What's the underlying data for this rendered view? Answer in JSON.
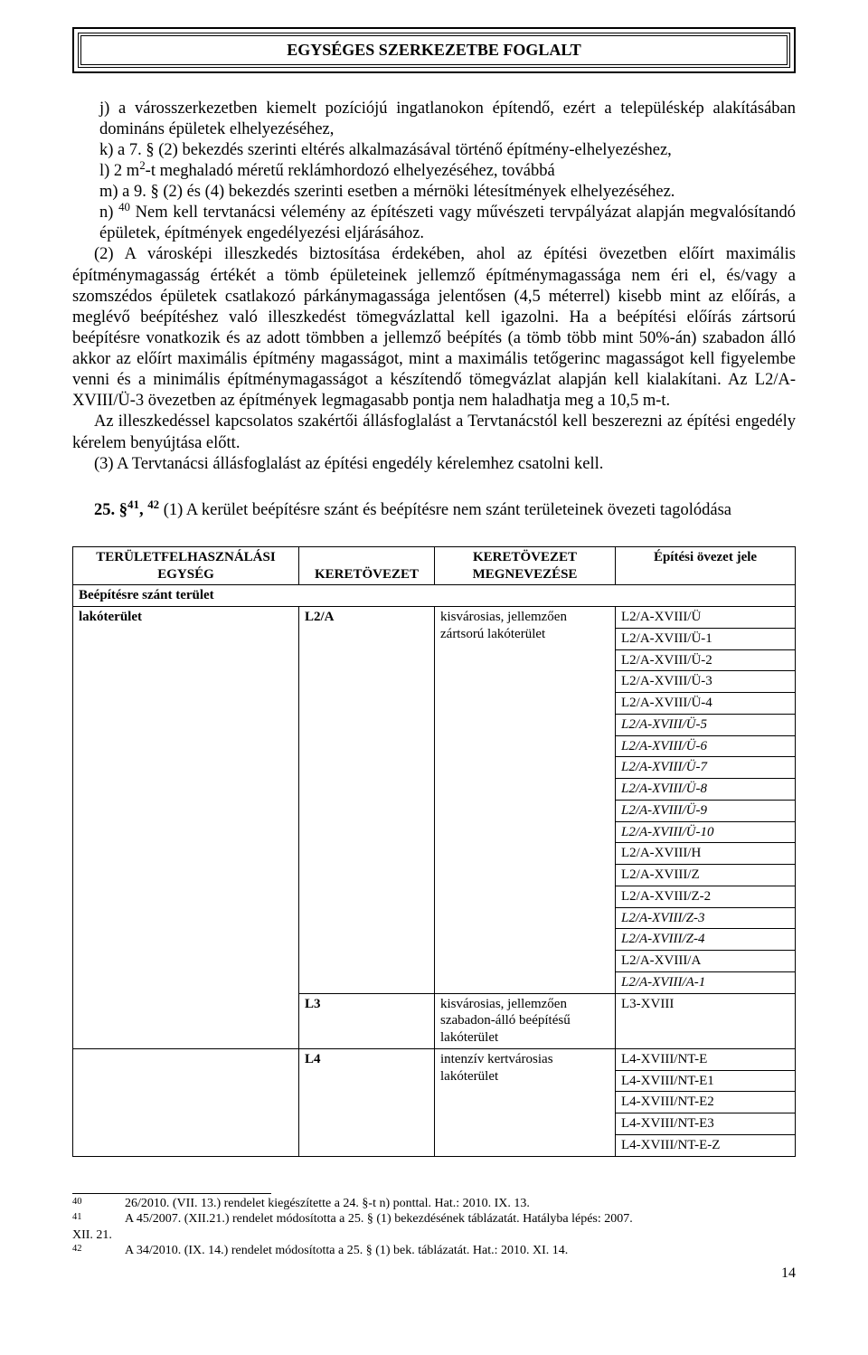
{
  "header": {
    "title": "EGYSÉGES SZERKEZETBE FOGLALT"
  },
  "para": {
    "j": "j) a városszerkezetben kiemelt pozíciójú ingatlanokon építendő, ezért a településkép alakításában domináns épületek elhelyezéséhez,",
    "k": "k) a 7. § (2) bekezdés szerinti eltérés alkalmazásával történő építmény-elhelyezéshez,",
    "l_pre": "l) 2 m",
    "l_exp": "2",
    "l_post": "-t meghaladó méretű reklámhordozó elhelyezéséhez, továbbá",
    "m": "m) a 9. § (2) és (4) bekezdés szerinti esetben a mérnöki létesítmények elhelyezéséhez.",
    "n_pre": "n) ",
    "n_sup": "40",
    "n_post": " Nem kell tervtanácsi vélemény az építészeti vagy művészeti tervpályázat alapján megvalósítandó épületek, építmények engedélyezési eljárásához.",
    "p2": "(2) A városképi illeszkedés biztosítása érdekében, ahol az építési övezetben előírt maximális építménymagasság értékét a tömb épületeinek jellemző építménymagassága nem éri el, és/vagy a szomszédos épületek csatlakozó párkánymagassága jelentősen (4,5 méterrel) kisebb mint az előírás, a meglévő beépítéshez való illeszkedést tömegvázlattal kell igazolni. Ha a beépítési előírás zártsorú beépítésre vonatkozik és az adott tömbben a jellemző beépítés (a tömb több mint 50%-án) szabadon álló akkor az előírt maximális építmény magasságot, mint a maximális tetőgerinc magasságot kell figyelembe venni és a minimális építménymagasságot a készítendő tömegvázlat alapján kell kialakítani. Az L2/A-XVIII/Ü-3 övezetben az építmények legmagasabb pontja nem haladhatja meg a 10,5 m-t.",
    "p2b": "Az illeszkedéssel kapcsolatos szakértői állásfoglalást a Tervtanácstól kell beszerezni az építési engedély kérelem benyújtása előtt.",
    "p3": "(3) A Tervtanácsi állásfoglalást az építési engedély kérelemhez csatolni kell.",
    "s25_pre": "25. §",
    "s25_sup1": "41",
    "s25_mid": ", ",
    "s25_sup2": "42",
    "s25_post": " (1) A kerület beépítésre szánt és beépítésre nem szánt területeinek övezeti tagolódása"
  },
  "table": {
    "headers": {
      "c1a": "TERÜLETFELHASZNÁLÁSI",
      "c1b": "EGYSÉG",
      "c2": "KERETÖVEZET",
      "c3a": "KERETÖVEZET",
      "c3b": "MEGNEVEZÉSE",
      "c4": "Építési övezet jele"
    },
    "row_span": "Beépítésre szánt terület",
    "r1": {
      "c1": "lakóterület",
      "c2": "L2/A",
      "c3": "kisvárosias, jellemzően zártsorú lakóterület"
    },
    "zones1": [
      {
        "t": "L2/A-XVIII/Ü",
        "i": false
      },
      {
        "t": "L2/A-XVIII/Ü-1",
        "i": false
      },
      {
        "t": "L2/A-XVIII/Ü-2",
        "i": false
      },
      {
        "t": "L2/A-XVIII/Ü-3",
        "i": false
      },
      {
        "t": "L2/A-XVIII/Ü-4",
        "i": false
      },
      {
        "t": "L2/A-XVIII/Ü-5",
        "i": true
      },
      {
        "t": "L2/A-XVIII/Ü-6",
        "i": true
      },
      {
        "t": "L2/A-XVIII/Ü-7",
        "i": true
      },
      {
        "t": "L2/A-XVIII/Ü-8",
        "i": true
      },
      {
        "t": "L2/A-XVIII/Ü-9",
        "i": true
      },
      {
        "t": "L2/A-XVIII/Ü-10",
        "i": true
      },
      {
        "t": "L2/A-XVIII/H",
        "i": false
      },
      {
        "t": "L2/A-XVIII/Z",
        "i": false
      },
      {
        "t": "L2/A-XVIII/Z-2",
        "i": false
      },
      {
        "t": "L2/A-XVIII/Z-3",
        "i": true
      },
      {
        "t": "L2/A-XVIII/Z-4",
        "i": true
      },
      {
        "t": "L2/A-XVIII/A",
        "i": false
      },
      {
        "t": "L2/A-XVIII/A-1",
        "i": true
      }
    ],
    "r2": {
      "c2": "L3",
      "c3": "kisvárosias, jellemzően szabadon-álló beépítésű lakóterület",
      "c4": "L3-XVIII"
    },
    "r3": {
      "c2": "L4",
      "c3": "intenzív kertvárosias lakóterület"
    },
    "zones3": [
      {
        "t": "L4-XVIII/NT-E",
        "i": false
      },
      {
        "t": "L4-XVIII/NT-E1",
        "i": false
      },
      {
        "t": "L4-XVIII/NT-E2",
        "i": false
      },
      {
        "t": "L4-XVIII/NT-E3",
        "i": false
      },
      {
        "t": "L4-XVIII/NT-E-Z",
        "i": false
      }
    ]
  },
  "footnotes": {
    "f40n": "40",
    "f40": "26/2010. (VII. 13.) rendelet kiegészítette a 24. §-t n) ponttal. Hat.: 2010. IX. 13.",
    "f41n": "41",
    "f41": "A 45/2007. (XII.21.) rendelet módosította a 25. § (1) bekezdésének táblázatát. Hatályba lépés: 2007.",
    "f41b": "XII. 21.",
    "f42n": "42",
    "f42": "A 34/2010. (IX. 14.) rendelet módosította a 25. § (1) bek. táblázatát. Hat.: 2010. XI. 14."
  },
  "pagenum": "14"
}
